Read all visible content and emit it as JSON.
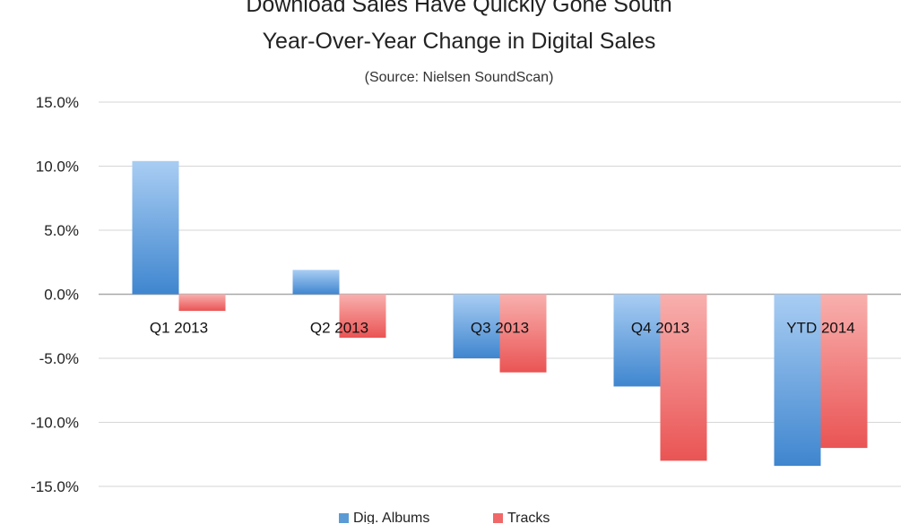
{
  "chart_data": {
    "type": "bar",
    "title": "Download Sales Have Quickly Gone South",
    "subtitle": "Year-Over-Year Change in Digital Sales",
    "source": "(Source: Nielsen SoundScan)",
    "categories": [
      "Q1 2013",
      "Q2 2013",
      "Q3 2013",
      "Q4 2013",
      "YTD 2014"
    ],
    "series": [
      {
        "name": "Dig. Albums",
        "color": "#5b9bd5",
        "values": [
          10.4,
          1.9,
          -5.0,
          -7.2,
          -13.4
        ]
      },
      {
        "name": "Tracks",
        "color": "#f06868",
        "values": [
          -1.3,
          -3.4,
          -6.1,
          -13.0,
          -12.0
        ]
      }
    ],
    "yticks": [
      "15.0%",
      "10.0%",
      "5.0%",
      "0.0%",
      "-5.0%",
      "-10.0%",
      "-15.0%"
    ],
    "ylim": [
      -15,
      15
    ],
    "grid": true,
    "legend": "bottom"
  }
}
